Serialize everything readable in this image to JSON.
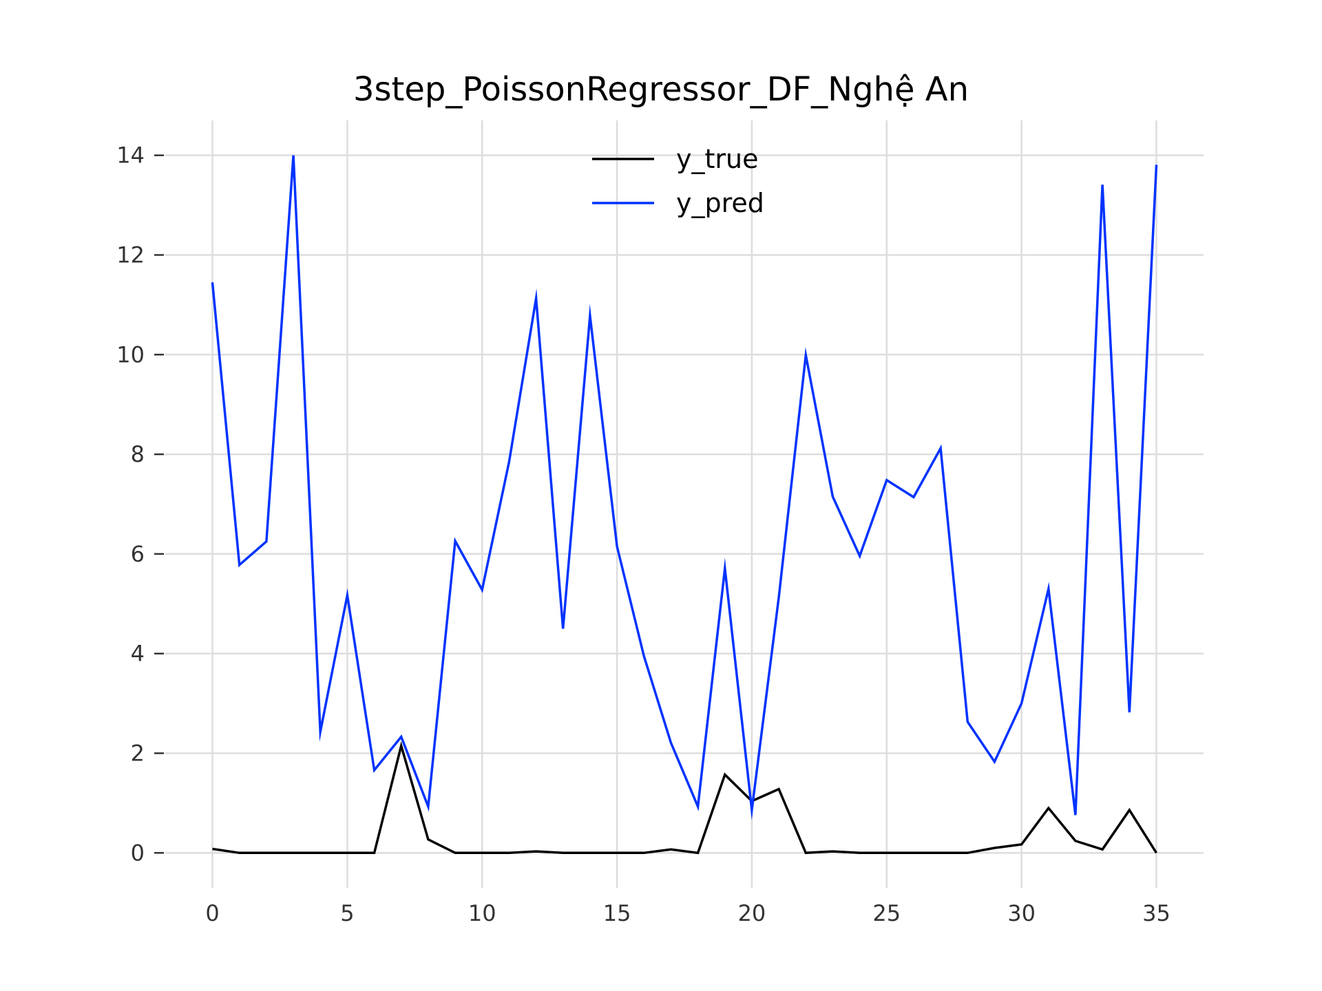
{
  "chart_data": {
    "type": "line",
    "title": "3step_PoissonRegressor_DF_Nghệ An",
    "xlabel": "",
    "ylabel": "",
    "xlim": [
      -1.75,
      36.75
    ],
    "ylim": [
      -0.7,
      14.7
    ],
    "x_ticks": [
      0,
      5,
      10,
      15,
      20,
      25,
      30,
      35
    ],
    "y_ticks": [
      0,
      2,
      4,
      6,
      8,
      10,
      12,
      14
    ],
    "grid": true,
    "legend_position": "top-center",
    "x": [
      0,
      1,
      2,
      3,
      4,
      5,
      6,
      7,
      8,
      9,
      10,
      11,
      12,
      13,
      14,
      15,
      16,
      17,
      18,
      19,
      20,
      21,
      22,
      23,
      24,
      25,
      26,
      27,
      28,
      29,
      30,
      31,
      32,
      33,
      34,
      35
    ],
    "series": [
      {
        "name": "y_true",
        "color": "#000000",
        "values": [
          0.08,
          0.0,
          0.0,
          0.0,
          0.0,
          0.0,
          0.0,
          2.15,
          0.27,
          0.0,
          0.0,
          0.0,
          0.03,
          0.0,
          0.0,
          0.0,
          0.0,
          0.07,
          0.0,
          1.57,
          1.04,
          1.28,
          0.0,
          0.03,
          0.0,
          0.0,
          0.0,
          0.0,
          0.0,
          0.1,
          0.17,
          0.9,
          0.24,
          0.07,
          0.86,
          0.0
        ]
      },
      {
        "name": "y_pred",
        "color": "#0033ff",
        "values": [
          11.45,
          5.78,
          6.25,
          14.0,
          2.43,
          5.17,
          1.66,
          2.33,
          0.93,
          6.26,
          5.28,
          7.85,
          11.13,
          4.5,
          10.78,
          6.15,
          3.95,
          2.21,
          0.93,
          5.71,
          0.86,
          5.13,
          9.99,
          7.15,
          5.96,
          7.48,
          7.14,
          8.12,
          2.63,
          1.83,
          3.0,
          5.3,
          0.76,
          13.41,
          2.82,
          13.81
        ]
      }
    ]
  }
}
